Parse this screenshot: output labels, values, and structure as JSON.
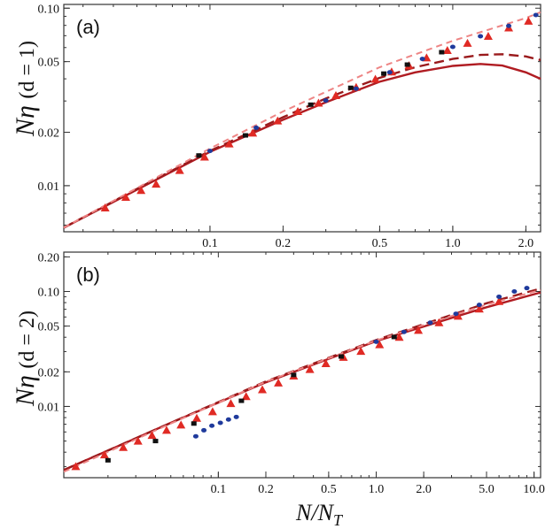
{
  "colors": {
    "solid": "#b01c22",
    "dashed": "#9a1a1c",
    "light_dashed": "#ee8585",
    "triangles": "#e02a24",
    "circles": "#1f3a9c",
    "squares": "#111111",
    "frame": "#333333"
  },
  "chart_data": [
    {
      "panel_label": "(a)",
      "type": "line+scatter",
      "scale": {
        "x": "log",
        "y": "log"
      },
      "xlim": [
        0.025,
        2.3
      ],
      "ylim": [
        0.0055,
        0.105
      ],
      "xticks": [
        0.1,
        0.2,
        0.5,
        1.0,
        2.0
      ],
      "xtick_labels": [
        "0.1",
        "0.2",
        "0.5",
        "1.0",
        "2.0"
      ],
      "yticks": [
        0.01,
        0.02,
        0.05,
        0.1
      ],
      "ytick_labels": [
        "0.01",
        "0.02",
        "0.05",
        "0.10"
      ],
      "ylabel_parts": {
        "main": "Nη",
        "arg": "(d = 1)"
      },
      "series": [
        {
          "name": "solid",
          "style": "solid",
          "x": [
            0.025,
            0.05,
            0.1,
            0.2,
            0.3,
            0.5,
            0.7,
            1.0,
            1.3,
            1.6,
            2.0,
            2.3
          ],
          "y": [
            0.0058,
            0.0095,
            0.0155,
            0.0235,
            0.0295,
            0.0385,
            0.0435,
            0.0473,
            0.0485,
            0.0475,
            0.0435,
            0.04
          ]
        },
        {
          "name": "dashed",
          "style": "dashed",
          "x": [
            0.025,
            0.05,
            0.1,
            0.2,
            0.3,
            0.5,
            0.7,
            1.0,
            1.3,
            1.6,
            2.0,
            2.3
          ],
          "y": [
            0.0058,
            0.0096,
            0.0157,
            0.0243,
            0.031,
            0.0405,
            0.0465,
            0.0518,
            0.0545,
            0.055,
            0.0535,
            0.051
          ]
        },
        {
          "name": "light-dashed",
          "style": "light-dashed",
          "x": [
            0.025,
            0.05,
            0.1,
            0.2,
            0.5,
            1.0,
            2.0,
            2.3
          ],
          "y": [
            0.0058,
            0.0097,
            0.0162,
            0.0262,
            0.0465,
            0.0655,
            0.088,
            0.095
          ]
        },
        {
          "name": "triangles",
          "marker": "triangle",
          "x": [
            0.037,
            0.045,
            0.052,
            0.06,
            0.075,
            0.095,
            0.12,
            0.15,
            0.19,
            0.23,
            0.28,
            0.33,
            0.4,
            0.48,
            0.56,
            0.66,
            0.78,
            0.95,
            1.15,
            1.4,
            1.7,
            2.05
          ],
          "y": [
            0.0075,
            0.0086,
            0.0094,
            0.0102,
            0.0122,
            0.0145,
            0.0172,
            0.0198,
            0.0232,
            0.0262,
            0.0292,
            0.0322,
            0.0358,
            0.0398,
            0.0438,
            0.0475,
            0.0525,
            0.0578,
            0.0635,
            0.0695,
            0.0775,
            0.0845
          ]
        },
        {
          "name": "circles",
          "marker": "circle",
          "x": [
            0.1,
            0.155,
            0.3,
            0.4,
            0.55,
            0.75,
            1.0,
            1.3,
            1.7,
            2.2
          ],
          "y": [
            0.0157,
            0.0212,
            0.0302,
            0.0352,
            0.0435,
            0.0518,
            0.0605,
            0.0695,
            0.0795,
            0.0915
          ]
        },
        {
          "name": "squares",
          "marker": "square",
          "x": [
            0.09,
            0.14,
            0.26,
            0.38,
            0.52,
            0.65,
            0.9
          ],
          "y": [
            0.0148,
            0.0192,
            0.0286,
            0.0356,
            0.0428,
            0.0481,
            0.0565
          ]
        }
      ]
    },
    {
      "panel_label": "(b)",
      "type": "line+scatter",
      "scale": {
        "x": "log",
        "y": "log"
      },
      "xlim": [
        0.0105,
        11.0
      ],
      "ylim": [
        0.0024,
        0.22
      ],
      "xticks": [
        0.1,
        0.2,
        0.5,
        1.0,
        2.0,
        5.0,
        10.0
      ],
      "xtick_labels": [
        "0.1",
        "0.2",
        "0.5",
        "1.0",
        "2.0",
        "5.0",
        "10.0"
      ],
      "yticks": [
        0.01,
        0.02,
        0.05,
        0.1,
        0.2
      ],
      "ytick_labels": [
        "0.01",
        "0.02",
        "0.05",
        "0.10",
        "0.20"
      ],
      "ylabel_parts": {
        "main": "Nη",
        "arg": "(d = 2)"
      },
      "xlabel_parts": {
        "main": "N/N",
        "sub": "T"
      },
      "series": [
        {
          "name": "solid",
          "style": "solid",
          "x": [
            0.0105,
            0.05,
            0.2,
            1.0,
            5.0,
            11.0
          ],
          "y": [
            0.0028,
            0.0072,
            0.0162,
            0.037,
            0.073,
            0.098
          ]
        },
        {
          "name": "dashed",
          "style": "dashed",
          "x": [
            0.0105,
            0.05,
            0.2,
            1.0,
            5.0,
            11.0
          ],
          "y": [
            0.0028,
            0.0072,
            0.0165,
            0.0378,
            0.079,
            0.106
          ]
        },
        {
          "name": "light-dashed",
          "style": "light-dashed",
          "x": [
            0.0105,
            0.05,
            0.2,
            1.0,
            5.0,
            11.0
          ],
          "y": [
            0.0027,
            0.0071,
            0.0164,
            0.0375,
            0.077,
            0.103
          ]
        },
        {
          "name": "triangles",
          "marker": "triangle",
          "x": [
            0.0125,
            0.019,
            0.025,
            0.031,
            0.038,
            0.047,
            0.058,
            0.073,
            0.092,
            0.12,
            0.15,
            0.19,
            0.24,
            0.3,
            0.38,
            0.48,
            0.62,
            0.8,
            1.05,
            1.4,
            1.85,
            2.5,
            3.3,
            4.5,
            6.0
          ],
          "y": [
            0.003,
            0.0038,
            0.0044,
            0.005,
            0.0056,
            0.0062,
            0.0069,
            0.0079,
            0.009,
            0.0106,
            0.0122,
            0.014,
            0.016,
            0.0184,
            0.021,
            0.0236,
            0.0268,
            0.0302,
            0.0345,
            0.04,
            0.046,
            0.0535,
            0.061,
            0.0705,
            0.082
          ]
        },
        {
          "name": "circles",
          "marker": "circle",
          "x": [
            0.072,
            0.081,
            0.091,
            0.103,
            0.116,
            0.13,
            1.0,
            1.5,
            2.2,
            3.2,
            4.5,
            6.0,
            7.5,
            9.0
          ],
          "y": [
            0.0055,
            0.0062,
            0.0068,
            0.0072,
            0.0077,
            0.0081,
            0.0365,
            0.0445,
            0.0535,
            0.064,
            0.0765,
            0.09,
            0.1,
            0.107
          ]
        },
        {
          "name": "squares",
          "marker": "square",
          "x": [
            0.02,
            0.04,
            0.07,
            0.14,
            0.3,
            0.6,
            1.3
          ],
          "y": [
            0.0034,
            0.005,
            0.0071,
            0.0112,
            0.0188,
            0.0272,
            0.0402
          ]
        }
      ]
    }
  ]
}
